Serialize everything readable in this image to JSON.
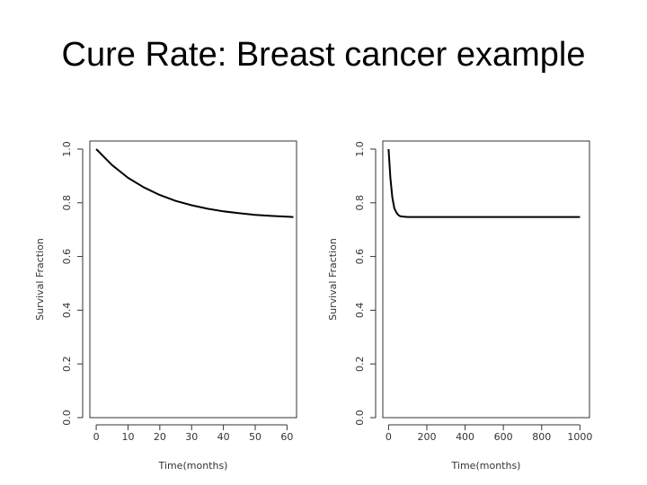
{
  "slide": {
    "title": "Cure Rate: Breast cancer example"
  },
  "colors": {
    "line": "#000000",
    "axis": "#333333",
    "background": "#ffffff"
  },
  "chart_data": [
    {
      "type": "line",
      "xlabel": "Time(months)",
      "ylabel": "Survival Fraction",
      "xlim": [
        -2,
        63
      ],
      "ylim": [
        0,
        1.03
      ],
      "xticks": [
        0,
        10,
        20,
        30,
        40,
        50,
        60
      ],
      "yticks": [
        "0.0",
        "0.2",
        "0.4",
        "0.6",
        "0.8",
        "1.0"
      ],
      "grid": false,
      "series": [
        {
          "x": [
            0,
            5,
            10,
            15,
            20,
            25,
            30,
            35,
            40,
            45,
            50,
            55,
            60,
            62
          ],
          "y": [
            1.0,
            0.94,
            0.893,
            0.857,
            0.829,
            0.807,
            0.791,
            0.778,
            0.768,
            0.761,
            0.755,
            0.751,
            0.748,
            0.747
          ]
        }
      ]
    },
    {
      "type": "line",
      "xlabel": "Time(months)",
      "ylabel": "Survival Fraction",
      "xlim": [
        -30,
        1050
      ],
      "ylim": [
        0,
        1.03
      ],
      "xticks": [
        0,
        200,
        400,
        600,
        800,
        1000
      ],
      "yticks": [
        "0.0",
        "0.2",
        "0.4",
        "0.6",
        "0.8",
        "1.0"
      ],
      "grid": false,
      "series": [
        {
          "x": [
            0,
            10,
            20,
            30,
            40,
            50,
            60,
            80,
            100,
            1000
          ],
          "y": [
            1.0,
            0.89,
            0.82,
            0.78,
            0.765,
            0.755,
            0.75,
            0.748,
            0.747,
            0.747
          ]
        }
      ]
    }
  ]
}
